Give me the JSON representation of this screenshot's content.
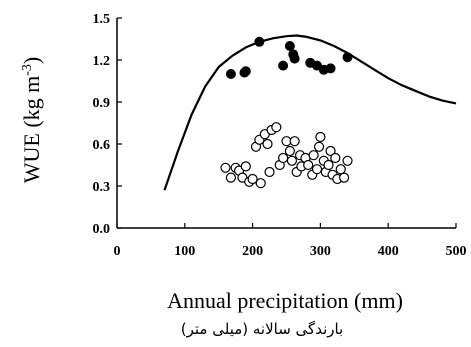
{
  "chart_data": {
    "type": "scatter",
    "xlabel": "Annual precipitation (mm)",
    "xlabel_secondary": "بارندگی سالانه (میلی متر)",
    "ylabel": "WUE (kg m",
    "ylabel_superscript": "-3",
    "ylabel_close": ")",
    "xlim": [
      0,
      500
    ],
    "ylim": [
      0,
      1.5
    ],
    "x_ticks": [
      0,
      100,
      200,
      300,
      400,
      500
    ],
    "y_ticks": [
      0.0,
      0.3,
      0.6,
      0.9,
      1.2,
      1.5
    ],
    "x_tick_labels": [
      "0",
      "100",
      "200",
      "300",
      "400",
      "500"
    ],
    "y_tick_labels": [
      "0.0",
      "0.3",
      "0.6",
      "0.9",
      "1.2",
      "1.5"
    ],
    "grid": false,
    "legend": "none",
    "series": [
      {
        "marker": "filled-circle",
        "points": [
          [
            168,
            1.1
          ],
          [
            188,
            1.11
          ],
          [
            190,
            1.12
          ],
          [
            210,
            1.33
          ],
          [
            245,
            1.16
          ],
          [
            255,
            1.3
          ],
          [
            260,
            1.24
          ],
          [
            262,
            1.21
          ],
          [
            285,
            1.18
          ],
          [
            295,
            1.16
          ],
          [
            305,
            1.13
          ],
          [
            315,
            1.14
          ],
          [
            340,
            1.22
          ]
        ]
      },
      {
        "marker": "open-circle",
        "points": [
          [
            160,
            0.43
          ],
          [
            168,
            0.36
          ],
          [
            175,
            0.43
          ],
          [
            180,
            0.41
          ],
          [
            185,
            0.36
          ],
          [
            190,
            0.44
          ],
          [
            195,
            0.33
          ],
          [
            200,
            0.35
          ],
          [
            205,
            0.58
          ],
          [
            210,
            0.63
          ],
          [
            212,
            0.32
          ],
          [
            218,
            0.67
          ],
          [
            222,
            0.6
          ],
          [
            225,
            0.4
          ],
          [
            228,
            0.7
          ],
          [
            235,
            0.72
          ],
          [
            240,
            0.45
          ],
          [
            245,
            0.5
          ],
          [
            250,
            0.62
          ],
          [
            255,
            0.55
          ],
          [
            258,
            0.48
          ],
          [
            262,
            0.62
          ],
          [
            265,
            0.4
          ],
          [
            270,
            0.52
          ],
          [
            272,
            0.44
          ],
          [
            278,
            0.5
          ],
          [
            282,
            0.45
          ],
          [
            288,
            0.38
          ],
          [
            290,
            0.52
          ],
          [
            295,
            0.42
          ],
          [
            298,
            0.58
          ],
          [
            300,
            0.65
          ],
          [
            305,
            0.48
          ],
          [
            308,
            0.4
          ],
          [
            312,
            0.45
          ],
          [
            315,
            0.55
          ],
          [
            318,
            0.38
          ],
          [
            322,
            0.5
          ],
          [
            325,
            0.35
          ],
          [
            330,
            0.42
          ],
          [
            335,
            0.36
          ],
          [
            340,
            0.48
          ]
        ]
      },
      {
        "marker": "line",
        "points": [
          [
            70,
            0.27
          ],
          [
            90,
            0.55
          ],
          [
            110,
            0.81
          ],
          [
            130,
            1.01
          ],
          [
            150,
            1.15
          ],
          [
            170,
            1.23
          ],
          [
            190,
            1.29
          ],
          [
            210,
            1.33
          ],
          [
            230,
            1.355
          ],
          [
            250,
            1.37
          ],
          [
            265,
            1.375
          ],
          [
            280,
            1.365
          ],
          [
            300,
            1.34
          ],
          [
            320,
            1.3
          ],
          [
            340,
            1.25
          ],
          [
            360,
            1.19
          ],
          [
            380,
            1.13
          ],
          [
            400,
            1.07
          ],
          [
            420,
            1.02
          ],
          [
            440,
            0.98
          ],
          [
            460,
            0.94
          ],
          [
            480,
            0.91
          ],
          [
            500,
            0.89
          ]
        ]
      }
    ]
  }
}
